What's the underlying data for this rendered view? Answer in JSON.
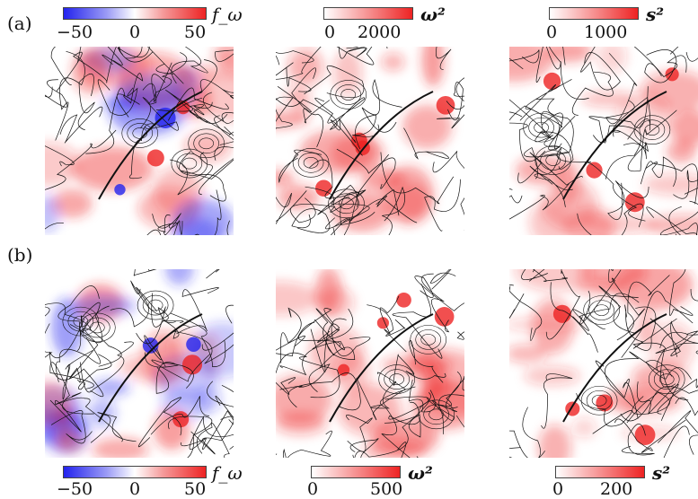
{
  "figure": {
    "row_labels": [
      "(a)",
      "(b)"
    ],
    "colorbars": [
      {
        "id": "a-fw",
        "label": "f_ω",
        "ticks": [
          "−50",
          "0",
          "50"
        ],
        "scheme": "diverging"
      },
      {
        "id": "a-w2",
        "label": "ω²",
        "ticks": [
          "0",
          "2000"
        ],
        "scheme": "sequential"
      },
      {
        "id": "a-s2",
        "label": "s²",
        "ticks": [
          "0",
          "1000"
        ],
        "scheme": "sequential"
      },
      {
        "id": "b-fw",
        "label": "f_ω",
        "ticks": [
          "−50",
          "0",
          "50"
        ],
        "scheme": "diverging"
      },
      {
        "id": "b-w2",
        "label": "ω²",
        "ticks": [
          "0",
          "500"
        ],
        "scheme": "sequential"
      },
      {
        "id": "b-s2",
        "label": "s²",
        "ticks": [
          "0",
          "200"
        ],
        "scheme": "sequential"
      }
    ],
    "colors": {
      "negative": "#2323ee",
      "positive": "#ee2323",
      "streamline": "#111111",
      "background": "#ffffff"
    }
  }
}
